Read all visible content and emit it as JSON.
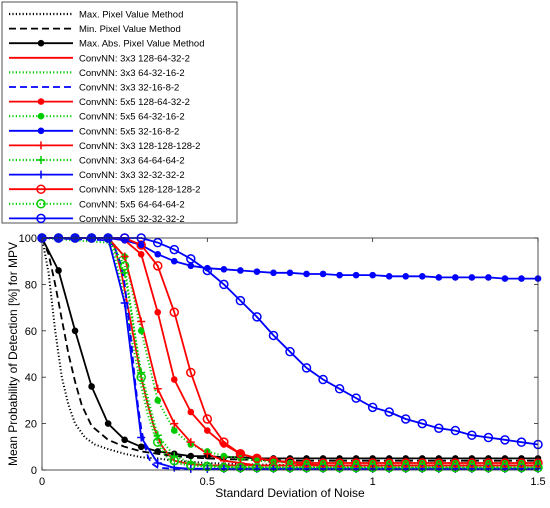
{
  "chart_data": {
    "type": "line",
    "title": "",
    "xlabel": "Standard Deviation of Noise",
    "ylabel": "Mean Probability of Detection [%] for MPV",
    "xlim": [
      0,
      1.5
    ],
    "ylim": [
      0,
      100
    ],
    "xticks": [
      "0",
      "0.5",
      "1",
      "1.5"
    ],
    "yticks": [
      "0",
      "20",
      "40",
      "60",
      "80",
      "100"
    ],
    "grid": false,
    "legend_position": "top-left",
    "series": [
      {
        "name": "Max. Pixel Value Method",
        "color": "#000000",
        "dash": "dotted",
        "marker": "none",
        "x": [
          0,
          0.02,
          0.04,
          0.06,
          0.08,
          0.1,
          0.13,
          0.16,
          0.2,
          0.25,
          0.3,
          0.35,
          0.4,
          0.5,
          0.6,
          0.8,
          1.0,
          1.2,
          1.5
        ],
        "y": [
          100,
          85,
          60,
          40,
          28,
          20,
          14,
          11,
          9,
          7,
          5.5,
          5,
          4,
          3,
          2.5,
          2,
          2,
          2,
          2
        ]
      },
      {
        "name": "Min. Pixel Value Method",
        "color": "#000000",
        "dash": "dashed",
        "marker": "none",
        "x": [
          0,
          0.02,
          0.04,
          0.06,
          0.08,
          0.1,
          0.12,
          0.15,
          0.2,
          0.25,
          0.3,
          0.35,
          0.4,
          0.5,
          0.6,
          0.8,
          1.0,
          1.5
        ],
        "y": [
          100,
          93,
          80,
          65,
          50,
          38,
          28,
          19,
          13,
          10,
          8,
          7,
          6,
          5,
          4.5,
          4,
          4,
          4
        ]
      },
      {
        "name": "Max. Abs. Pixel Value Method",
        "color": "#000000",
        "dash": "solid",
        "marker": "dot",
        "x": [
          0,
          0.05,
          0.1,
          0.15,
          0.2,
          0.25,
          0.3,
          0.35,
          0.4,
          0.45,
          0.5,
          0.55,
          0.6,
          0.65,
          0.7,
          0.75,
          0.8,
          0.85,
          0.9,
          0.95,
          1.0,
          1.05,
          1.1,
          1.15,
          1.2,
          1.25,
          1.3,
          1.35,
          1.4,
          1.45,
          1.5
        ],
        "y": [
          100,
          86,
          60,
          36,
          20,
          13,
          10,
          8,
          7,
          6,
          6,
          5.5,
          5.5,
          5,
          5,
          5,
          5,
          5,
          5,
          5,
          5,
          5,
          5,
          5,
          5,
          5,
          5,
          5,
          5,
          5,
          5
        ]
      },
      {
        "name": "ConvNN: 3x3 128-64-32-2",
        "color": "#ff0000",
        "dash": "solid",
        "marker": "none",
        "x": [
          0,
          0.2,
          0.22,
          0.24,
          0.26,
          0.28,
          0.3,
          0.32,
          0.34,
          0.36,
          0.38,
          0.4,
          0.45,
          0.5,
          0.6,
          0.8,
          1.0,
          1.5
        ],
        "y": [
          100,
          100,
          96,
          85,
          70,
          55,
          40,
          28,
          18,
          11,
          7,
          4,
          2.5,
          2,
          2,
          2,
          2,
          2
        ]
      },
      {
        "name": "ConvNN: 3x3 64-32-16-2",
        "color": "#00cc00",
        "dash": "dotted",
        "marker": "none",
        "x": [
          0,
          0.2,
          0.22,
          0.24,
          0.26,
          0.28,
          0.3,
          0.32,
          0.34,
          0.36,
          0.38,
          0.4,
          0.45,
          0.5,
          0.6,
          0.8,
          1.0,
          1.5
        ],
        "y": [
          100,
          98,
          92,
          80,
          64,
          50,
          36,
          24,
          15,
          9,
          5,
          3,
          2,
          1.5,
          1.5,
          1.5,
          1.5,
          1.5
        ]
      },
      {
        "name": "ConvNN: 3x3 32-16-8-2",
        "color": "#0000ff",
        "dash": "dashed",
        "marker": "none",
        "x": [
          0,
          0.2,
          0.22,
          0.24,
          0.25,
          0.26,
          0.27,
          0.28,
          0.29,
          0.3,
          0.31,
          0.32,
          0.33,
          0.35,
          0.4,
          0.5,
          1.0,
          1.5
        ],
        "y": [
          100,
          99,
          96,
          88,
          80,
          68,
          55,
          40,
          28,
          18,
          11,
          6,
          3,
          1,
          0.5,
          0.5,
          0.5,
          0.5
        ]
      },
      {
        "name": "ConvNN: 5x5 128-64-32-2",
        "color": "#ff0000",
        "dash": "solid",
        "marker": "dot",
        "x": [
          0,
          0.05,
          0.1,
          0.15,
          0.2,
          0.25,
          0.3,
          0.35,
          0.4,
          0.45,
          0.5,
          0.55,
          0.6,
          0.65,
          0.7,
          0.75,
          0.8,
          0.85,
          0.9,
          0.95,
          1.0,
          1.05,
          1.1,
          1.15,
          1.2,
          1.25,
          1.3,
          1.35,
          1.4,
          1.45,
          1.5
        ],
        "y": [
          100,
          100,
          100,
          100,
          100,
          99,
          93,
          68,
          39,
          25,
          17,
          11,
          7,
          5,
          4,
          3,
          2.5,
          2,
          2,
          2,
          2,
          2,
          2,
          2,
          2,
          2,
          2,
          2,
          2,
          2,
          2
        ]
      },
      {
        "name": "ConvNN: 5x5 64-32-16-2",
        "color": "#00cc00",
        "dash": "dotted",
        "marker": "dot",
        "x": [
          0,
          0.05,
          0.1,
          0.15,
          0.2,
          0.25,
          0.3,
          0.35,
          0.4,
          0.45,
          0.5,
          0.55,
          0.6,
          0.65,
          0.7,
          0.75,
          0.8,
          0.85,
          0.9,
          0.95,
          1.0,
          1.05,
          1.1,
          1.15,
          1.2,
          1.25,
          1.3,
          1.35,
          1.4,
          1.45,
          1.5
        ],
        "y": [
          100,
          100,
          100,
          100,
          100,
          92,
          60,
          30,
          17,
          11,
          8,
          6,
          5,
          4,
          3.5,
          3,
          3,
          3,
          3,
          3,
          3,
          3,
          3,
          3,
          3,
          3,
          3,
          3,
          3,
          3,
          3
        ]
      },
      {
        "name": "ConvNN: 5x5 32-16-8-2",
        "color": "#0000ff",
        "dash": "solid",
        "marker": "dot",
        "x": [
          0,
          0.05,
          0.1,
          0.15,
          0.2,
          0.25,
          0.3,
          0.35,
          0.4,
          0.45,
          0.5,
          0.55,
          0.6,
          0.65,
          0.7,
          0.75,
          0.8,
          0.85,
          0.9,
          0.95,
          1.0,
          1.05,
          1.1,
          1.15,
          1.2,
          1.25,
          1.3,
          1.35,
          1.4,
          1.45,
          1.5
        ],
        "y": [
          100,
          100,
          100,
          100,
          100,
          99,
          97,
          93,
          90,
          88,
          87,
          86.5,
          86,
          85.5,
          85,
          85,
          84.5,
          84.5,
          84,
          84,
          84,
          83.5,
          83.5,
          83.5,
          83,
          83,
          83,
          83,
          82.5,
          82.5,
          82.5
        ]
      },
      {
        "name": "ConvNN: 3x3 128-128-128-2",
        "color": "#ff0000",
        "dash": "solid",
        "marker": "plus",
        "x": [
          0,
          0.05,
          0.1,
          0.15,
          0.2,
          0.25,
          0.3,
          0.35,
          0.4,
          0.45,
          0.5,
          0.55,
          0.6,
          0.65,
          0.7,
          0.75,
          0.8,
          0.85,
          0.9,
          0.95,
          1.0,
          1.05,
          1.1,
          1.15,
          1.2,
          1.25,
          1.3,
          1.35,
          1.4,
          1.45,
          1.5
        ],
        "y": [
          100,
          100,
          100,
          100,
          100,
          92,
          64,
          35,
          20,
          12,
          7,
          4,
          3,
          2,
          2,
          2,
          2,
          2,
          2,
          2,
          2,
          2,
          2,
          2,
          2,
          2,
          2,
          2,
          2,
          2,
          2
        ]
      },
      {
        "name": "ConvNN: 3x3 64-64-64-2",
        "color": "#00cc00",
        "dash": "dotted",
        "marker": "plus",
        "x": [
          0,
          0.05,
          0.1,
          0.15,
          0.2,
          0.25,
          0.3,
          0.35,
          0.4,
          0.45,
          0.5,
          0.55,
          0.6,
          0.65,
          0.7,
          0.75,
          0.8,
          0.85,
          0.9,
          0.95,
          1.0,
          1.05,
          1.1,
          1.15,
          1.2,
          1.25,
          1.3,
          1.35,
          1.4,
          1.45,
          1.5
        ],
        "y": [
          100,
          100,
          100,
          100,
          100,
          85,
          42,
          15,
          6,
          3,
          2,
          1.5,
          1,
          1,
          1,
          1,
          1,
          1,
          1,
          1,
          1,
          1,
          1,
          1,
          1,
          1,
          1,
          1,
          1,
          1,
          1
        ]
      },
      {
        "name": "ConvNN: 3x3 32-32-32-2",
        "color": "#0000ff",
        "dash": "solid",
        "marker": "plus",
        "x": [
          0,
          0.05,
          0.1,
          0.15,
          0.2,
          0.25,
          0.3,
          0.35,
          0.4,
          0.45,
          0.5,
          0.55,
          0.6,
          0.65,
          0.7,
          0.75,
          0.8,
          0.85,
          0.9,
          0.95,
          1.0,
          1.05,
          1.1,
          1.15,
          1.2,
          1.25,
          1.3,
          1.35,
          1.4,
          1.45,
          1.5
        ],
        "y": [
          100,
          100,
          100,
          100,
          100,
          72,
          14,
          3,
          1,
          0.5,
          0.5,
          0.5,
          0.5,
          0.5,
          0.5,
          0.5,
          0.5,
          0.5,
          0.5,
          0.5,
          0.5,
          0.5,
          0.5,
          0.5,
          0.5,
          0.5,
          0.5,
          0.5,
          0.5,
          0.5,
          0.5
        ]
      },
      {
        "name": "ConvNN: 5x5 128-128-128-2",
        "color": "#ff0000",
        "dash": "solid",
        "marker": "circle",
        "x": [
          0,
          0.05,
          0.1,
          0.15,
          0.2,
          0.25,
          0.3,
          0.35,
          0.4,
          0.45,
          0.5,
          0.55,
          0.6,
          0.65,
          0.7,
          0.75,
          0.8,
          0.85,
          0.9,
          0.95,
          1.0,
          1.05,
          1.1,
          1.15,
          1.2,
          1.25,
          1.3,
          1.35,
          1.4,
          1.45,
          1.5
        ],
        "y": [
          100,
          100,
          100,
          100,
          100,
          100,
          97,
          88,
          68,
          42,
          22,
          12,
          7,
          5,
          4,
          3.5,
          3,
          3,
          3,
          3,
          3,
          3,
          3,
          3,
          3,
          3,
          3,
          3,
          3,
          3,
          3
        ]
      },
      {
        "name": "ConvNN: 5x5 64-64-64-2",
        "color": "#00cc00",
        "dash": "dotted",
        "marker": "circle",
        "x": [
          0,
          0.05,
          0.1,
          0.15,
          0.2,
          0.25,
          0.3,
          0.35,
          0.4,
          0.45,
          0.5,
          0.55,
          0.6,
          0.65,
          0.7,
          0.75,
          0.8,
          0.85,
          0.9,
          0.95,
          1.0,
          1.05,
          1.1,
          1.15,
          1.2,
          1.25,
          1.3,
          1.35,
          1.4,
          1.45,
          1.5
        ],
        "y": [
          100,
          100,
          100,
          100,
          100,
          88,
          40,
          12,
          4,
          2,
          1.5,
          1,
          1,
          1,
          1,
          1,
          1,
          1,
          1,
          1,
          1,
          1,
          1,
          1,
          1,
          1,
          1,
          1,
          1,
          1,
          1
        ]
      },
      {
        "name": "ConvNN: 5x5 32-32-32-2",
        "color": "#0000ff",
        "dash": "solid",
        "marker": "circle",
        "x": [
          0,
          0.05,
          0.1,
          0.15,
          0.2,
          0.25,
          0.3,
          0.35,
          0.4,
          0.45,
          0.5,
          0.55,
          0.6,
          0.65,
          0.7,
          0.75,
          0.8,
          0.85,
          0.9,
          0.95,
          1.0,
          1.05,
          1.1,
          1.15,
          1.2,
          1.25,
          1.3,
          1.35,
          1.4,
          1.45,
          1.5
        ],
        "y": [
          100,
          100,
          100,
          100,
          100,
          100,
          100,
          98,
          95,
          91,
          86,
          80,
          73,
          66,
          58,
          51,
          44,
          39,
          35,
          31,
          27,
          25,
          22,
          20,
          18,
          17,
          15,
          14,
          13,
          12,
          11
        ]
      }
    ]
  }
}
